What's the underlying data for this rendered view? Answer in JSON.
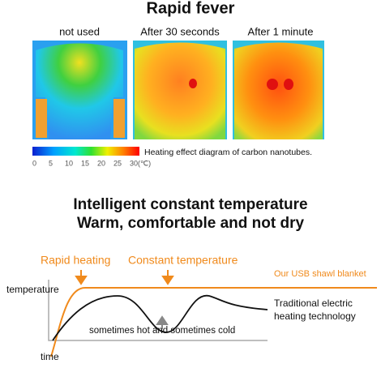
{
  "title": "Rapid fever",
  "panels": [
    "not used",
    "After 30 seconds",
    "After 1 minute"
  ],
  "color_scale": {
    "labels": [
      "0",
      "5",
      "10",
      "15",
      "20",
      "25",
      "30(℃)"
    ],
    "caption": "Heating effect diagram of carbon nanotubes."
  },
  "heading": [
    "Intelligent constant temperature",
    "Warm, comfortable and not dry"
  ],
  "diagram": {
    "rapid_heating": "Rapid heating",
    "constant_temperature": "Constant temperature",
    "our_product": "Our USB shawl blanket",
    "y_label": "temperature",
    "x_label": "time",
    "traditional": [
      "Traditional electric",
      "heating technology"
    ],
    "fluctuation": "sometimes hot and sometimes cold"
  }
}
